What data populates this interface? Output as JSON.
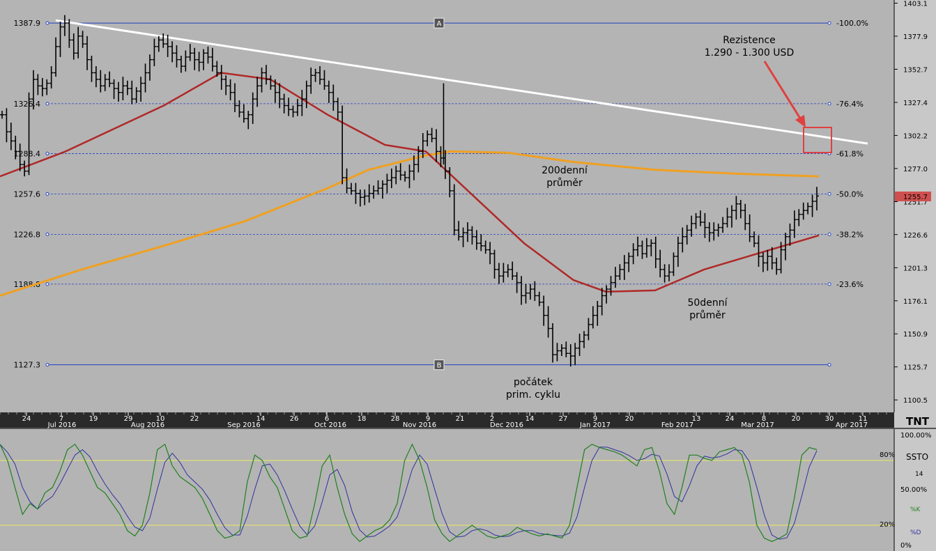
{
  "chart_data": {
    "type": "ohlc-bar",
    "price_axis": {
      "ticks": [
        1403.1,
        1377.9,
        1352.7,
        1327.4,
        1302.2,
        1277.0,
        1251.7,
        1226.6,
        1201.3,
        1176.1,
        1150.9,
        1125.7,
        1100.5
      ],
      "range": [
        1091.0,
        1405.5
      ],
      "last_price_label": "1255.7"
    },
    "fib_levels": [
      {
        "price": 1387.9,
        "left": "1387.9",
        "right": "-100.0%"
      },
      {
        "price": 1326.4,
        "left": "1326.4",
        "right": "-76.4%"
      },
      {
        "price": 1288.4,
        "left": "1288.4",
        "right": "-61.8%"
      },
      {
        "price": 1257.6,
        "left": "1257.6",
        "right": "-50.0%"
      },
      {
        "price": 1226.8,
        "left": "1226.8",
        "right": "-38.2%"
      },
      {
        "price": 1188.8,
        "left": "1188.8",
        "right": "-23.6%"
      },
      {
        "price": 1127.3,
        "left": "1127.3",
        "right": ""
      }
    ],
    "fib_markers": {
      "top": "A",
      "bottom": "B"
    },
    "time_axis": {
      "days": [
        "24",
        "7",
        "19",
        "29",
        "10",
        "22",
        "14",
        "26",
        "6",
        "18",
        "28",
        "9",
        "21",
        "2",
        "14",
        "27",
        "9",
        "20",
        "13",
        "24",
        "8",
        "20",
        "30",
        "11"
      ],
      "months": [
        "Jul 2016",
        "Aug 2016",
        "Sep 2016",
        "Oct 2016",
        "Nov 2016",
        "Dec 2016",
        "Jan 2017",
        "Feb 2017",
        "Mar 2017",
        "Apr 2017"
      ]
    },
    "annotations": {
      "resistance_line1": "Rezistence",
      "resistance_line2": "1.290 - 1.300 USD",
      "ma200_line1": "200denní",
      "ma200_line2": "průměr",
      "ma50_line1": "50denní",
      "ma50_line2": "průměr",
      "cycle_line1": "počátek",
      "cycle_line2": "prim. cyklu"
    },
    "closes": [
      1318,
      1305,
      1298,
      1290,
      1280,
      1275,
      1330,
      1345,
      1340,
      1338,
      1342,
      1350,
      1370,
      1385,
      1388,
      1375,
      1365,
      1378,
      1372,
      1360,
      1350,
      1345,
      1340,
      1345,
      1342,
      1338,
      1335,
      1340,
      1338,
      1330,
      1336,
      1342,
      1350,
      1360,
      1370,
      1375,
      1372,
      1370,
      1365,
      1360,
      1355,
      1362,
      1365,
      1360,
      1358,
      1365,
      1362,
      1355,
      1350,
      1345,
      1340,
      1335,
      1325,
      1320,
      1315,
      1318,
      1330,
      1340,
      1350,
      1345,
      1340,
      1335,
      1330,
      1325,
      1322,
      1320,
      1325,
      1330,
      1340,
      1348,
      1350,
      1345,
      1340,
      1335,
      1328,
      1320,
      1270,
      1262,
      1260,
      1258,
      1255,
      1256,
      1258,
      1260,
      1262,
      1265,
      1268,
      1270,
      1275,
      1272,
      1270,
      1275,
      1280,
      1290,
      1298,
      1303,
      1300,
      1290,
      1285,
      1275,
      1260,
      1230,
      1225,
      1228,
      1230,
      1225,
      1220,
      1218,
      1215,
      1212,
      1200,
      1195,
      1198,
      1200,
      1195,
      1190,
      1180,
      1182,
      1185,
      1180,
      1175,
      1165,
      1155,
      1135,
      1138,
      1140,
      1136,
      1134,
      1140,
      1145,
      1150,
      1158,
      1165,
      1172,
      1180,
      1185,
      1190,
      1195,
      1200,
      1205,
      1210,
      1215,
      1218,
      1212,
      1218,
      1220,
      1208,
      1200,
      1195,
      1198,
      1210,
      1220,
      1225,
      1230,
      1235,
      1240,
      1236,
      1232,
      1228,
      1230,
      1232,
      1235,
      1240,
      1245,
      1250,
      1245,
      1235,
      1225,
      1220,
      1210,
      1205,
      1210,
      1205,
      1200,
      1215,
      1225,
      1230,
      1238,
      1242,
      1245,
      1248,
      1252,
      1256
    ],
    "ma50": {
      "x": [
        0,
        0.08,
        0.2,
        0.27,
        0.33,
        0.4,
        0.47,
        0.52,
        0.58,
        0.64,
        0.7,
        0.74,
        0.8,
        0.86,
        1.0
      ],
      "y": [
        1271,
        1290,
        1325,
        1350,
        1345,
        1318,
        1295,
        1290,
        1255,
        1220,
        1192,
        1183,
        1184,
        1200,
        1226
      ]
    },
    "ma200": {
      "x": [
        0,
        0.1,
        0.2,
        0.3,
        0.4,
        0.45,
        0.52,
        0.55,
        0.62,
        0.7,
        0.8,
        0.9,
        1.0
      ],
      "y": [
        1180,
        1200,
        1218,
        1237,
        1262,
        1276,
        1287,
        1290,
        1289,
        1282,
        1276,
        1273,
        1271
      ]
    },
    "trendline": {
      "start": 1390,
      "end": 1296
    },
    "oscillator": {
      "name": "SSTO",
      "period": "14",
      "ticks": [
        "100.00%",
        "80%",
        "50.00%",
        "20%",
        "0%"
      ],
      "k_label": "%K",
      "d_label": "%D",
      "k": [
        95,
        80,
        55,
        30,
        40,
        35,
        50,
        55,
        70,
        90,
        95,
        85,
        70,
        55,
        50,
        40,
        30,
        15,
        10,
        20,
        50,
        90,
        95,
        75,
        65,
        60,
        55,
        45,
        30,
        15,
        8,
        10,
        15,
        60,
        85,
        80,
        65,
        55,
        35,
        15,
        8,
        10,
        40,
        75,
        85,
        55,
        30,
        12,
        5,
        10,
        15,
        18,
        25,
        40,
        80,
        95,
        80,
        55,
        25,
        12,
        5,
        10,
        15,
        20,
        15,
        10,
        8,
        10,
        12,
        18,
        15,
        12,
        10,
        12,
        10,
        8,
        20,
        55,
        90,
        95,
        92,
        90,
        88,
        85,
        80,
        75,
        90,
        92,
        70,
        40,
        30,
        55,
        85,
        85,
        82,
        80,
        88,
        90,
        92,
        85,
        60,
        20,
        8,
        5,
        8,
        12,
        45,
        85,
        92,
        90
      ]
    }
  }
}
